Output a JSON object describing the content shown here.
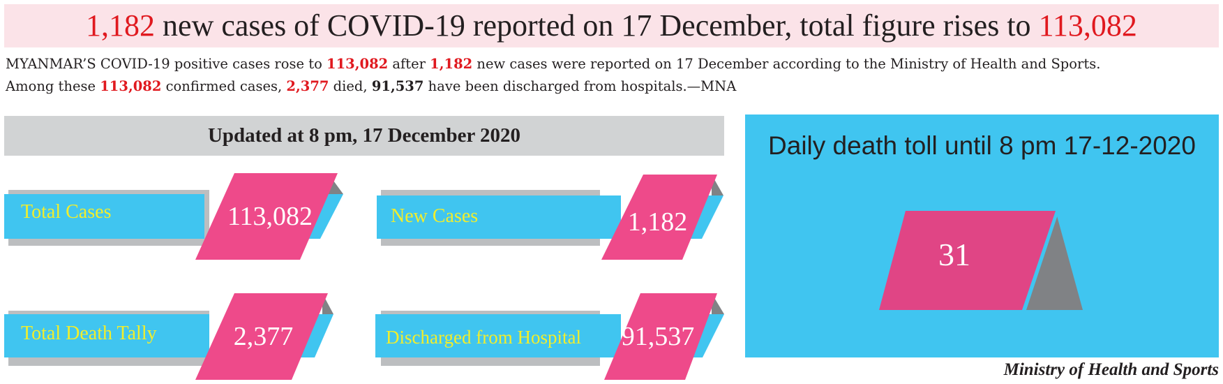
{
  "headline": {
    "new_cases": "1,182",
    "text_middle": " new cases of COVID-19 reported on 17 December, total figure rises to ",
    "total": "113,082"
  },
  "intro": {
    "l1_a": "MYANMAR’S COVID-19 positive cases rose to ",
    "l1_total": "113,082",
    "l1_b": " after ",
    "l1_new": "1,182",
    "l1_c": " new cases were reported on 17 December according to the Ministry of Health and Sports.",
    "l2_a": "Among these ",
    "l2_total": "113,082",
    "l2_b": " confirmed cases, ",
    "l2_died": "2,377",
    "l2_c": " died, ",
    "l2_discharged": "91,537",
    "l2_d": " have been discharged from hospitals.—MNA"
  },
  "updated": "Updated at 8 pm, 17 December 2020",
  "stats": [
    {
      "label": "Total Cases",
      "value": "113,082"
    },
    {
      "label": "New Cases",
      "value": "1,182"
    },
    {
      "label": "Total Death Tally",
      "value": "2,377"
    },
    {
      "label": "Discharged from Hospital",
      "value": "91,537"
    }
  ],
  "death": {
    "title": "Daily death toll until 8 pm 17-12-2020",
    "value": "31"
  },
  "source": "Ministry of Health and Sports",
  "colors": {
    "red": "#e0191f",
    "pink": "#ee4a8a",
    "cyan": "#40c5f0",
    "yellow": "#f2ee2b",
    "gray": "#808285",
    "light_gray": "#bcbec0",
    "headline_band": "#fbe3e8"
  }
}
